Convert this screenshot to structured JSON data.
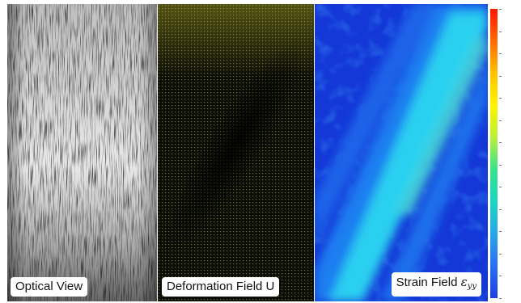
{
  "panels": {
    "optical": {
      "caption": "Optical View"
    },
    "deformation": {
      "caption": "Deformation Field U"
    },
    "strain": {
      "caption_prefix": "Strain Field ",
      "symbol": "ε",
      "subscript": "yy"
    }
  },
  "colorbar": {
    "orientation": "vertical",
    "colormap": [
      "#ff1800",
      "#ff6a00",
      "#ffc000",
      "#fff400",
      "#b8f03a",
      "#38e28c",
      "#1cd6c0",
      "#29a6ea",
      "#2a6ef2",
      "#1e3ee0"
    ]
  },
  "colors": {
    "background": "#ffffff",
    "strain_base": "#1438d8",
    "strain_band": "#2bd0f0",
    "vector_color": "#c8c040",
    "deformation_background": "#0b0d07"
  }
}
